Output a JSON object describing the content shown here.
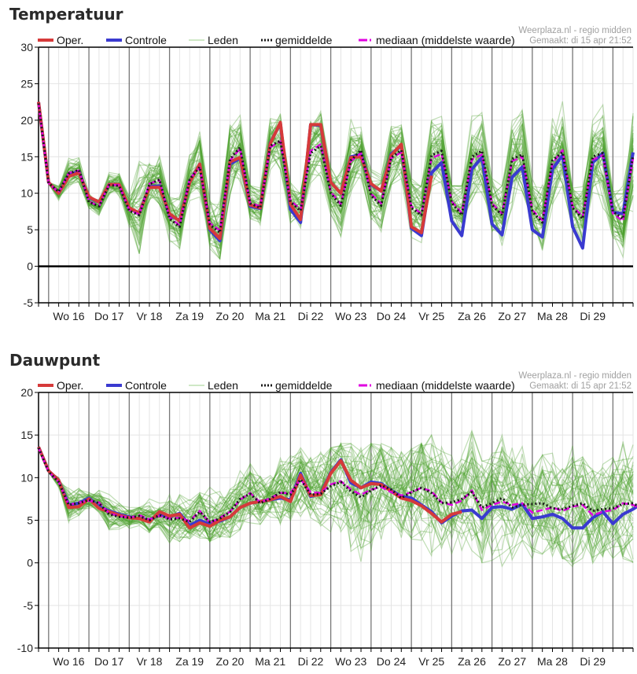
{
  "colors": {
    "oper": "#d63a3a",
    "controle": "#3a3ad0",
    "leden": "#4aa02c",
    "leden_legend": "#bfe0b4",
    "gemiddelde": "#1a1a1a",
    "mediaan": "#e000e0",
    "grid": "#e4e4e4",
    "day_line": "#777777",
    "axis": "#000000",
    "source_text": "#a0a0a0"
  },
  "legend": {
    "oper": "Oper.",
    "controle": "Controle",
    "leden": "Leden",
    "gemiddelde": "gemiddelde",
    "mediaan": "mediaan (middelste waarde)"
  },
  "source": {
    "line1": "Weerplaza.nl - regio midden",
    "line2": "Gemaakt: di 15 apr 21:52"
  },
  "chart_data": [
    {
      "id": "temp",
      "type": "line",
      "title": "Temperatuur",
      "xlabel": "",
      "ylabel": "",
      "ylim": [
        -5,
        30
      ],
      "yticks": [
        -5,
        0,
        5,
        10,
        15,
        20,
        25,
        30
      ],
      "grid": true,
      "legend_position": "top",
      "x_step": "6 uur",
      "x_start": "di 15 apr 18:00",
      "day_labels": [
        "Wo 16",
        "Do 17",
        "Vr 18",
        "Za 19",
        "Zo 20",
        "Ma 21",
        "Di 22",
        "Wo 23",
        "Do 24",
        "Vr 25",
        "Za 26",
        "Zo 27",
        "Ma 28",
        "Di 29"
      ],
      "series": [
        {
          "name": "Oper.",
          "key": "oper",
          "values": [
            22.5,
            11.5,
            10,
            12.3,
            12.8,
            9.5,
            8.8,
            11.2,
            11.2,
            8,
            7.3,
            10.8,
            10.8,
            7.2,
            6.2,
            11.5,
            14,
            5.2,
            3.8,
            14.3,
            14.9,
            8.4,
            8,
            16.8,
            19.7,
            8.5,
            6.4,
            19.4,
            19.4,
            11.5,
            10,
            14.9,
            15,
            11.3,
            10.3,
            15.2,
            16.7,
            5.4,
            4.6,
            12.4
          ]
        },
        {
          "name": "Controle",
          "key": "controle",
          "values": [
            22.5,
            11.5,
            10,
            12.5,
            13,
            9.4,
            8.8,
            11.2,
            11.2,
            7.9,
            7.3,
            10.9,
            11,
            7,
            6.3,
            11.6,
            14,
            5,
            3.5,
            14,
            14.8,
            8.2,
            7.9,
            16.9,
            19.6,
            7.8,
            6,
            19.4,
            19.3,
            11.5,
            10,
            15,
            15.3,
            11.2,
            10.3,
            15.4,
            16.5,
            5.2,
            4.2,
            12.8,
            14.2,
            6.2,
            4.2,
            13.3,
            14.9,
            5.8,
            4.3,
            12.2,
            13.6,
            5,
            4,
            13.3,
            15.2,
            5.4,
            2.5,
            14.2,
            15.5,
            7.4,
            7.2,
            15.6
          ]
        },
        {
          "name": "gemiddelde",
          "key": "gemiddelde",
          "values": [
            22.3,
            11.4,
            10.2,
            12.7,
            13.2,
            8.8,
            8.2,
            11.1,
            11,
            7.6,
            7,
            11.2,
            11.9,
            6.5,
            5.4,
            11.9,
            13.6,
            5.7,
            4.6,
            14.7,
            16.3,
            8.6,
            8,
            16.5,
            17.2,
            8.8,
            7.6,
            15.5,
            16.5,
            10,
            8.3,
            14.5,
            15.9,
            9.7,
            8.3,
            14.9,
            15.9,
            8,
            7,
            15.2,
            15.8,
            8.7,
            7,
            15,
            15.8,
            8.4,
            7,
            14.7,
            15.3,
            7.5,
            6,
            14.5,
            15.6,
            8,
            6.5,
            15,
            15.5,
            7.5,
            6.5,
            15.2
          ]
        },
        {
          "name": "mediaan (middelste waarde)",
          "key": "mediaan",
          "values": [
            22.3,
            11.4,
            10.1,
            12.8,
            13.1,
            8.9,
            8.2,
            11.2,
            11.1,
            7.7,
            7.1,
            11.3,
            11.8,
            6.7,
            5.6,
            12,
            13.5,
            5.9,
            4.9,
            14.5,
            16.1,
            8.7,
            8.2,
            16.3,
            17.1,
            9,
            7.8,
            15.8,
            16.7,
            10.2,
            8.5,
            14.4,
            15.5,
            9.9,
            8.6,
            14.8,
            15.6,
            8.2,
            7.2,
            14.8,
            15.4,
            8.9,
            7.3,
            14.6,
            15.3,
            8.6,
            7.2,
            14.4,
            15,
            7.7,
            6.3,
            14.1,
            15.9,
            8.2,
            6.8,
            14.6,
            15.2,
            7.2,
            6.2,
            14.8
          ]
        }
      ],
      "members": {
        "count": 50,
        "envelope_low": [
          21.5,
          10.5,
          8.5,
          10.5,
          11,
          7.8,
          6.3,
          9.2,
          9.3,
          5,
          1.7,
          8.3,
          8.5,
          2.5,
          0.6,
          9,
          9.5,
          1.5,
          1,
          9.8,
          10.5,
          6.5,
          5.5,
          11.5,
          12.5,
          5,
          3.5,
          11,
          12,
          7,
          2,
          10,
          12,
          5.5,
          2,
          10.5,
          12,
          3.5,
          1.5,
          8,
          10.5,
          4,
          1,
          8.5,
          10,
          3,
          0.5,
          8,
          10,
          2.5,
          1.5,
          7.5,
          9,
          3,
          1,
          6.5,
          8,
          2,
          0.5,
          7
        ],
        "envelope_high": [
          23,
          12.3,
          11,
          15.5,
          15.8,
          10.5,
          9.5,
          13,
          13,
          10,
          18.5,
          15.5,
          18,
          9.5,
          10,
          16.5,
          20,
          10,
          12,
          21,
          22,
          12,
          11,
          20.5,
          22,
          11.5,
          10,
          21,
          22.5,
          15,
          13,
          23,
          20.5,
          13.5,
          12.5,
          21,
          22.5,
          13.5,
          11,
          20,
          23.5,
          11,
          11,
          23,
          24,
          12,
          11,
          23,
          25,
          12,
          11.5,
          22,
          23.5,
          11.5,
          11,
          20,
          23.5,
          12,
          11,
          22
        ]
      }
    },
    {
      "id": "dew",
      "type": "line",
      "title": "Dauwpunt",
      "xlabel": "",
      "ylabel": "",
      "ylim": [
        -10,
        20
      ],
      "yticks": [
        -10,
        -5,
        0,
        5,
        10,
        15,
        20
      ],
      "grid": true,
      "legend_position": "top",
      "x_step": "6 uur",
      "x_start": "di 15 apr 18:00",
      "day_labels": [
        "Wo 16",
        "Do 17",
        "Vr 18",
        "Za 19",
        "Zo 20",
        "Ma 21",
        "Di 22",
        "Wo 23",
        "Do 24",
        "Vr 25",
        "Za 26",
        "Zo 27",
        "Ma 28",
        "Di 29"
      ],
      "series": [
        {
          "name": "Oper.",
          "key": "oper",
          "values": [
            13.6,
            10.8,
            9.7,
            6.5,
            6.6,
            7.5,
            6.4,
            6,
            5.6,
            5.3,
            5.2,
            4.8,
            6,
            5.5,
            5.7,
            4.1,
            4.7,
            4.3,
            5,
            5.4,
            6.5,
            7,
            7.2,
            7.4,
            7.8,
            7.2,
            10.3,
            7.9,
            8,
            10.5,
            12,
            9.7,
            8.8,
            9.3,
            9.2,
            8.4,
            7.6,
            7.3,
            6.7,
            5.8,
            4.8,
            5.7,
            6
          ]
        },
        {
          "name": "Controle",
          "key": "controle",
          "values": [
            13.6,
            10.8,
            9.7,
            6.8,
            7,
            7.6,
            6.6,
            6.1,
            5.7,
            5.4,
            5.2,
            5,
            5.7,
            5.4,
            5.8,
            4.4,
            5,
            4.5,
            4.9,
            5.4,
            6.5,
            7,
            7.2,
            7.4,
            7.6,
            7.4,
            10.5,
            7.8,
            8.1,
            10.6,
            12.1,
            9.4,
            8.8,
            9.5,
            9.3,
            8.5,
            7.8,
            7.6,
            6.8,
            6,
            4.7,
            5.5,
            6.1,
            6.2,
            5.2,
            6.5,
            6.6,
            6.3,
            6.9,
            5.2,
            5.4,
            5.7,
            5.2,
            4.1,
            4.1,
            5.3,
            6,
            4.6,
            5.7,
            6.3,
            7.1,
            6.4,
            7.6,
            6.1
          ]
        },
        {
          "name": "gemiddelde",
          "key": "gemiddelde",
          "values": [
            13.5,
            10.7,
            9.5,
            6.8,
            7,
            7.4,
            7,
            5.7,
            5.4,
            5.3,
            5.5,
            5,
            5.6,
            5.1,
            5.2,
            4.8,
            6,
            4.8,
            5.2,
            6,
            7.5,
            8.1,
            7,
            7.5,
            8.3,
            8,
            9.8,
            8,
            8.1,
            9,
            9.5,
            8.4,
            7.7,
            8.5,
            9.1,
            8.6,
            7.6,
            8.3,
            8.8,
            8.2,
            7,
            7.1,
            7.5,
            8.3,
            6.5,
            7,
            7.6,
            6.5,
            6.8,
            6.9,
            7,
            6.4,
            6.3,
            6.7,
            7,
            6.1,
            6.3,
            6.4,
            6.9,
            7,
            6.3,
            6.6,
            6.4,
            6
          ]
        },
        {
          "name": "mediaan (middelste waarde)",
          "key": "mediaan",
          "values": [
            13.5,
            10.7,
            9.5,
            6.8,
            7.1,
            7.3,
            7.1,
            5.8,
            5.5,
            5.3,
            5.6,
            5.1,
            5.5,
            5.2,
            5.3,
            4.9,
            6.1,
            4.7,
            5.3,
            6,
            7.4,
            8.2,
            7.1,
            7.6,
            8.2,
            8.2,
            9.8,
            8.3,
            8.2,
            9.2,
            9.6,
            8.6,
            8,
            8.6,
            8.9,
            8.3,
            7.9,
            8.3,
            8.8,
            8.4,
            7.1,
            6.8,
            7.3,
            8.5,
            6.2,
            6.8,
            7.2,
            6.8,
            7,
            5.9,
            6.2,
            6.5,
            6.1,
            6.6,
            6.8,
            5.6,
            6,
            6.2,
            7,
            6.8,
            6.2,
            6.6,
            6.3,
            6.1
          ]
        }
      ],
      "members": {
        "count": 50,
        "envelope_low": [
          13.2,
          10.3,
          8.5,
          4.3,
          5,
          6,
          5.5,
          3.5,
          3.5,
          4,
          3.5,
          1.8,
          3.5,
          2,
          2.5,
          2,
          2.5,
          2.5,
          3,
          3,
          3.5,
          4,
          4.5,
          4.5,
          3,
          2.5,
          3.5,
          2.5,
          2,
          1,
          -0.5,
          -1,
          -3,
          -1,
          0,
          1,
          1.5,
          0.5,
          -0.5,
          -1.5,
          0,
          1,
          0.5,
          -0.5,
          0,
          -0.5,
          -1.5,
          -0.5,
          0,
          0.5,
          1,
          0,
          0.5,
          -0.5,
          0.5,
          -0.5,
          0,
          0.5,
          -1,
          0,
          0.5,
          -0.5,
          -0.3,
          0
        ],
        "envelope_high": [
          13.9,
          11.2,
          10,
          9.5,
          9,
          8.5,
          8.5,
          8.5,
          7,
          7,
          6.5,
          7.5,
          7,
          9,
          9.5,
          8,
          10.5,
          11.5,
          10,
          11.5,
          12,
          13,
          12,
          11,
          12.5,
          13.5,
          13.5,
          12.5,
          13,
          13.5,
          14,
          14,
          13.5,
          14,
          14,
          13.5,
          13,
          13.5,
          14,
          15,
          14.5,
          14,
          14.5,
          15.5,
          14,
          14.5,
          15,
          14.5,
          14,
          14.5,
          15,
          14,
          14,
          14.5,
          14,
          14.5,
          14,
          14,
          14.5,
          15,
          15,
          14.5,
          15.5,
          16
        ]
      }
    }
  ]
}
